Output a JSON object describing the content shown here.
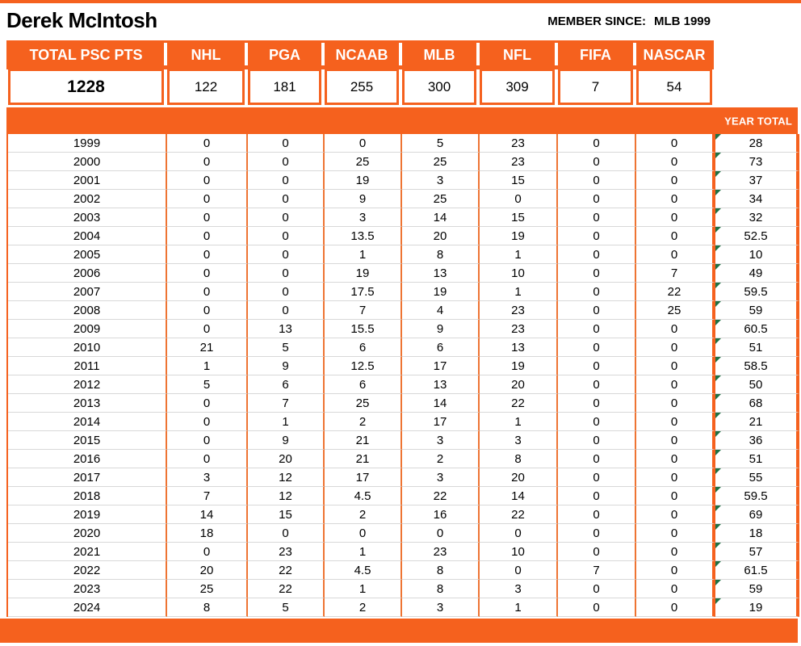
{
  "header": {
    "name": "Derek McIntosh",
    "member_since_label": "MEMBER SINCE:",
    "member_since_value": "MLB 1999"
  },
  "summary": {
    "total_label": "TOTAL PSC PTS",
    "total_value": "1228",
    "sport_values": [
      122,
      181,
      255,
      300,
      309,
      7,
      54
    ]
  },
  "year_total_label": "YEAR TOTAL",
  "table": {
    "sports": [
      "NHL",
      "PGA",
      "NCAAB",
      "MLB",
      "NFL",
      "FIFA",
      "NASCAR"
    ],
    "rows": [
      {
        "year": "1999",
        "values": [
          0,
          0,
          0,
          5,
          23,
          0,
          0
        ],
        "total": "28"
      },
      {
        "year": "2000",
        "values": [
          0,
          0,
          25,
          25,
          23,
          0,
          0
        ],
        "total": "73"
      },
      {
        "year": "2001",
        "values": [
          0,
          0,
          19,
          3,
          15,
          0,
          0
        ],
        "total": "37"
      },
      {
        "year": "2002",
        "values": [
          0,
          0,
          9,
          25,
          0,
          0,
          0
        ],
        "total": "34"
      },
      {
        "year": "2003",
        "values": [
          0,
          0,
          3,
          14,
          15,
          0,
          0
        ],
        "total": "32"
      },
      {
        "year": "2004",
        "values": [
          0,
          0,
          13.5,
          20,
          19,
          0,
          0
        ],
        "total": "52.5"
      },
      {
        "year": "2005",
        "values": [
          0,
          0,
          1,
          8,
          1,
          0,
          0
        ],
        "total": "10"
      },
      {
        "year": "2006",
        "values": [
          0,
          0,
          19,
          13,
          10,
          0,
          7
        ],
        "total": "49"
      },
      {
        "year": "2007",
        "values": [
          0,
          0,
          17.5,
          19,
          1,
          0,
          22
        ],
        "total": "59.5"
      },
      {
        "year": "2008",
        "values": [
          0,
          0,
          7,
          4,
          23,
          0,
          25
        ],
        "total": "59"
      },
      {
        "year": "2009",
        "values": [
          0,
          13,
          15.5,
          9,
          23,
          0,
          0
        ],
        "total": "60.5"
      },
      {
        "year": "2010",
        "values": [
          21,
          5,
          6,
          6,
          13,
          0,
          0
        ],
        "total": "51"
      },
      {
        "year": "2011",
        "values": [
          1,
          9,
          12.5,
          17,
          19,
          0,
          0
        ],
        "total": "58.5"
      },
      {
        "year": "2012",
        "values": [
          5,
          6,
          6,
          13,
          20,
          0,
          0
        ],
        "total": "50"
      },
      {
        "year": "2013",
        "values": [
          0,
          7,
          25,
          14,
          22,
          0,
          0
        ],
        "total": "68"
      },
      {
        "year": "2014",
        "values": [
          0,
          1,
          2,
          17,
          1,
          0,
          0
        ],
        "total": "21"
      },
      {
        "year": "2015",
        "values": [
          0,
          9,
          21,
          3,
          3,
          0,
          0
        ],
        "total": "36"
      },
      {
        "year": "2016",
        "values": [
          0,
          20,
          21,
          2,
          8,
          0,
          0
        ],
        "total": "51"
      },
      {
        "year": "2017",
        "values": [
          3,
          12,
          17,
          3,
          20,
          0,
          0
        ],
        "total": "55"
      },
      {
        "year": "2018",
        "values": [
          7,
          12,
          4.5,
          22,
          14,
          0,
          0
        ],
        "total": "59.5"
      },
      {
        "year": "2019",
        "values": [
          14,
          15,
          2,
          16,
          22,
          0,
          0
        ],
        "total": "69"
      },
      {
        "year": "2020",
        "values": [
          18,
          0,
          0,
          0,
          0,
          0,
          0
        ],
        "total": "18"
      },
      {
        "year": "2021",
        "values": [
          0,
          23,
          1,
          23,
          10,
          0,
          0
        ],
        "total": "57"
      },
      {
        "year": "2022",
        "values": [
          20,
          22,
          4.5,
          8,
          0,
          7,
          0
        ],
        "total": "61.5"
      },
      {
        "year": "2023",
        "values": [
          25,
          22,
          1,
          8,
          3,
          0,
          0
        ],
        "total": "59"
      },
      {
        "year": "2024",
        "values": [
          8,
          5,
          2,
          3,
          1,
          0,
          0
        ],
        "total": "19"
      }
    ]
  },
  "colors": {
    "accent_orange": "#F5611E",
    "thin_column_line": "#EE7433",
    "row_gridline": "#D8D8D8",
    "error_indicator_green": "#1E7145"
  }
}
